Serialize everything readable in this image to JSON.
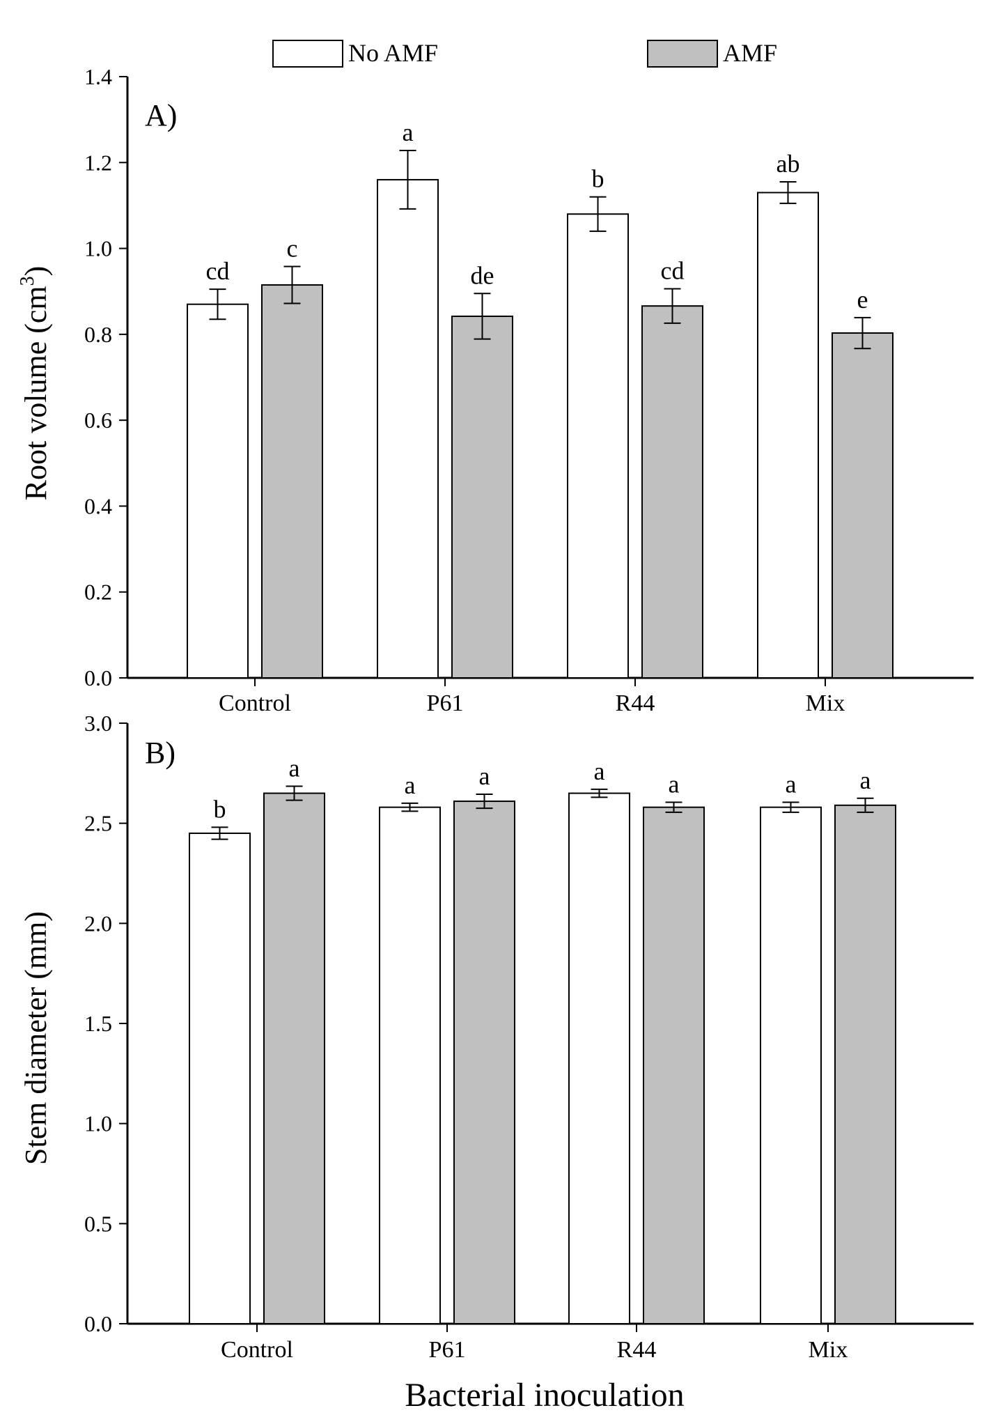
{
  "legend": [
    {
      "name": "No AMF",
      "color": "#ffffff"
    },
    {
      "name": "AMF",
      "color": "#c0c0c0"
    }
  ],
  "xlabel": "Bacterial inoculation",
  "chart_data": [
    {
      "type": "bar",
      "panel_label": "A)",
      "title": "",
      "ylabel": "Root volume (cm³)",
      "ylabel_main": "Root volume  (cm",
      "ylabel_sup": "3",
      "ylabel_close": ")",
      "ylim": [
        0,
        1.4
      ],
      "yticks": [
        "0.0",
        "0.2",
        "0.4",
        "0.6",
        "0.8",
        "1.0",
        "1.2",
        "1.4"
      ],
      "ytick_values": [
        0,
        0.2,
        0.4,
        0.6,
        0.8,
        1.0,
        1.2,
        1.4
      ],
      "categories": [
        "Control",
        "P61",
        "R44",
        "Mix"
      ],
      "series": [
        {
          "name": "No AMF",
          "color": "#ffffff",
          "values": [
            0.87,
            1.16,
            1.08,
            1.13
          ],
          "errors": [
            0.035,
            0.068,
            0.04,
            0.025
          ],
          "labels": [
            "cd",
            "a",
            "b",
            "ab"
          ]
        },
        {
          "name": "AMF",
          "color": "#c0c0c0",
          "values": [
            0.915,
            0.842,
            0.866,
            0.803
          ],
          "errors": [
            0.043,
            0.053,
            0.04,
            0.036
          ],
          "labels": [
            "c",
            "de",
            "cd",
            "e"
          ]
        }
      ]
    },
    {
      "type": "bar",
      "panel_label": "B)",
      "title": "",
      "ylabel": "Stem diameter (mm)",
      "ylim": [
        0,
        3.0
      ],
      "yticks": [
        "0.0",
        "0.5",
        "1.0",
        "1.5",
        "2.0",
        "2.5",
        "3.0"
      ],
      "ytick_values": [
        0,
        0.5,
        1.0,
        1.5,
        2.0,
        2.5,
        3.0
      ],
      "categories": [
        "Control",
        "P61",
        "R44",
        "Mix"
      ],
      "series": [
        {
          "name": "No AMF",
          "color": "#ffffff",
          "values": [
            2.45,
            2.58,
            2.65,
            2.58
          ],
          "errors": [
            0.03,
            0.02,
            0.02,
            0.025
          ],
          "labels": [
            "b",
            "a",
            "a",
            "a"
          ]
        },
        {
          "name": "AMF",
          "color": "#c0c0c0",
          "values": [
            2.65,
            2.61,
            2.58,
            2.59
          ],
          "errors": [
            0.035,
            0.035,
            0.025,
            0.035
          ],
          "labels": [
            "a",
            "a",
            "a",
            "a"
          ]
        }
      ]
    }
  ]
}
